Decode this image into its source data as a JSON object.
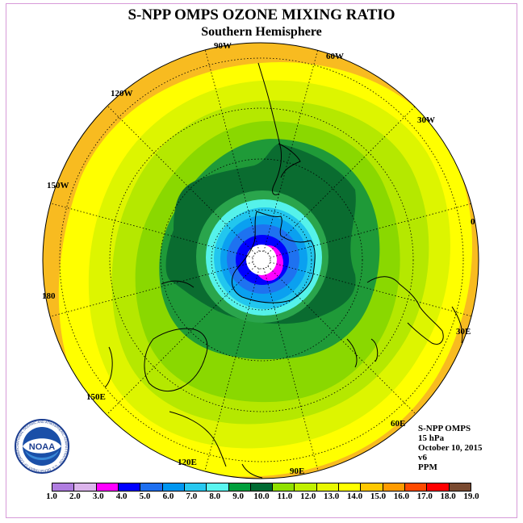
{
  "title": "S-NPP OMPS OZONE MIXING RATIO",
  "subtitle": "Southern Hemisphere",
  "longitude_labels": [
    "90W",
    "60W",
    "30W",
    "0",
    "30E",
    "60E",
    "90E",
    "120E",
    "150E",
    "180",
    "150W",
    "120W"
  ],
  "info": {
    "line1": "S-NPP OMPS",
    "line2": "15 hPa",
    "line3": "October 10, 2015",
    "line4": "v6",
    "line5": "PPM"
  },
  "logo": {
    "text": "NOAA",
    "ring_text": "NATIONAL OCEANIC AND ATMOSPHERIC ADMINISTRATION · U.S. DEPARTMENT OF COMMERCE"
  },
  "colorbar": {
    "ticks": [
      "1.0",
      "2.0",
      "3.0",
      "4.0",
      "5.0",
      "6.0",
      "7.0",
      "8.0",
      "9.0",
      "10.0",
      "11.0",
      "12.0",
      "13.0",
      "14.0",
      "15.0",
      "16.0",
      "17.0",
      "18.0",
      "19.0"
    ],
    "colors": [
      "#b07de0",
      "#dcb4ec",
      "#ff00ff",
      "#0000ff",
      "#1e6ff0",
      "#0096f0",
      "#28c8f0",
      "#5af5f0",
      "#009f3c",
      "#006a32",
      "#90e000",
      "#c0f000",
      "#e8f800",
      "#ffff00",
      "#ffc800",
      "#ff9b00",
      "#ff4a00",
      "#ff0000",
      "#7a4a30"
    ]
  },
  "colors": {
    "outer": "#f8bb20",
    "yellow": "#ffff00",
    "yellow_green": "#ddf500",
    "light_green": "#b5e800",
    "green": "#8ad800",
    "mid_green": "#1f9a38",
    "dark_green": "#0a6c30",
    "ring_green": "#2aa54c",
    "cyan_light": "#55f2ea",
    "cyan": "#22c6ee",
    "sky": "#0aa0f0",
    "blue": "#1e72f0",
    "deep_blue": "#0000ff",
    "magenta": "#ff00ff",
    "white": "#ffffff"
  }
}
